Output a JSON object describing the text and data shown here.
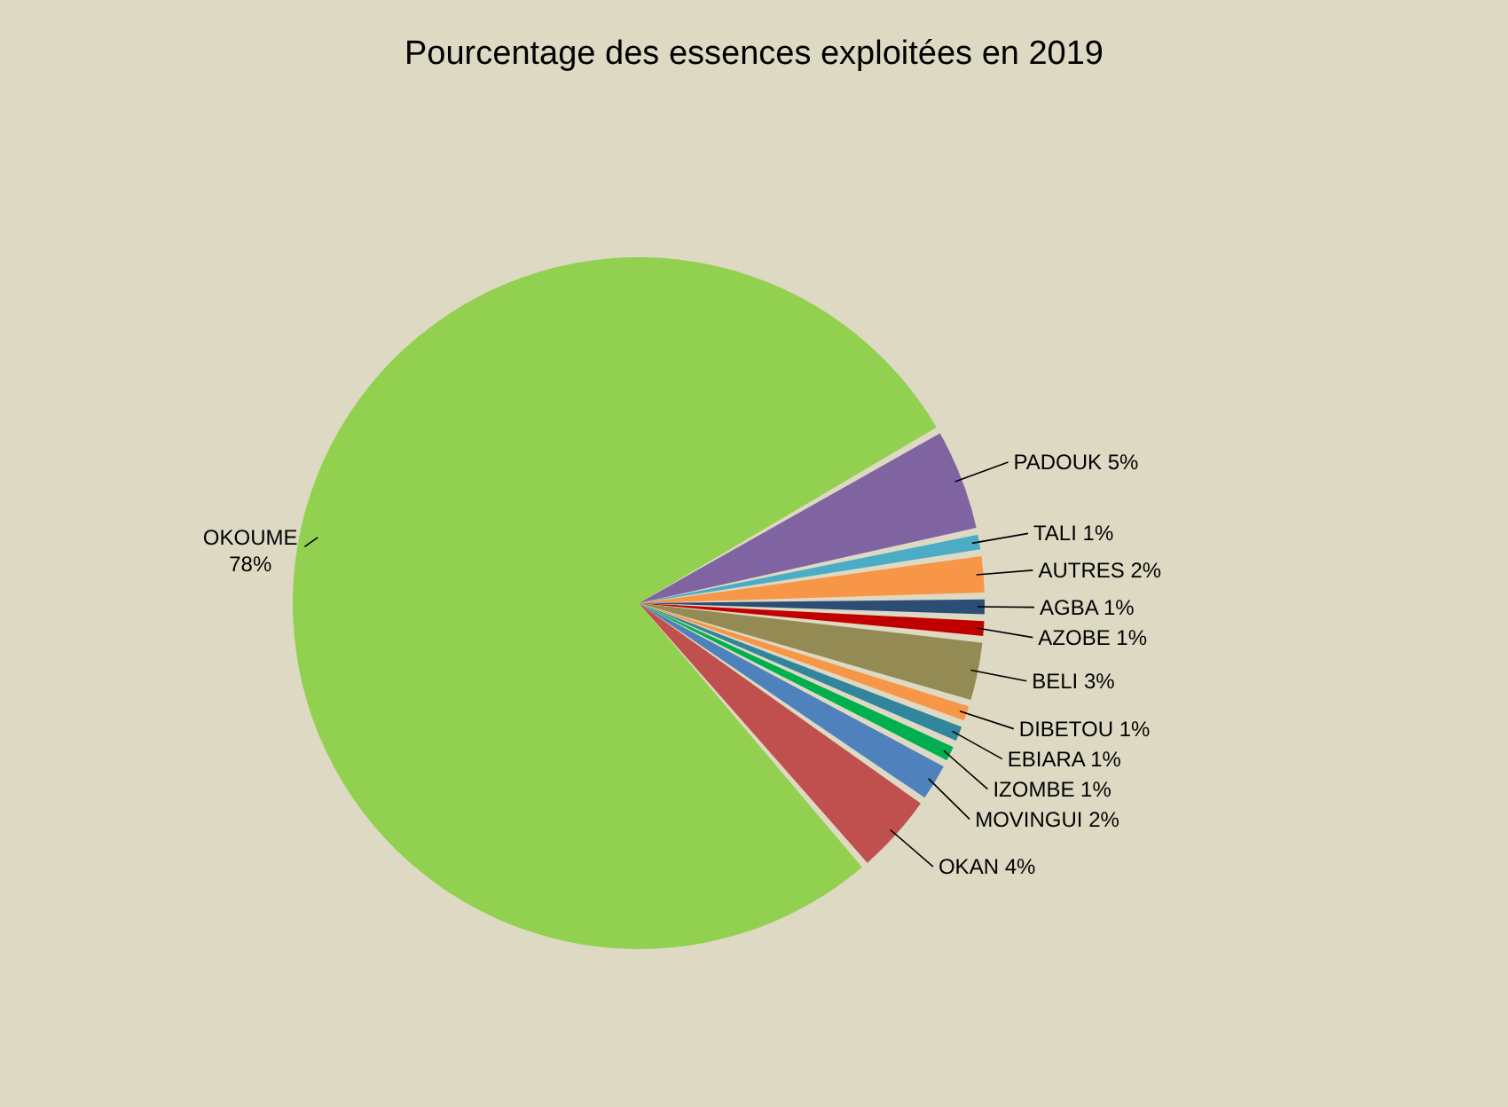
{
  "chart_data": {
    "type": "pie",
    "title": "Pourcentage des essences exploitées en 2019",
    "categories": [
      "PADOUK",
      "TALI",
      "AUTRES",
      "AGBA",
      "AZOBE",
      "BELI",
      "DIBETOU",
      "EBIARA",
      "IZOMBE",
      "MOVINGUI",
      "OKAN",
      "OKOUME"
    ],
    "values": [
      5,
      1,
      2,
      1,
      1,
      3,
      1,
      1,
      1,
      2,
      4,
      78
    ],
    "value_labels": [
      "5%",
      "1%",
      "2%",
      "1%",
      "1%",
      "3%",
      "1%",
      "1%",
      "1%",
      "2%",
      "4%",
      "78%"
    ],
    "colors": [
      "#8064a2",
      "#4bacc6",
      "#f79646",
      "#2c4d75",
      "#c00000",
      "#948a54",
      "#f79646",
      "#31859c",
      "#00b050",
      "#4f81bd",
      "#c0504d",
      "#92d050"
    ],
    "legend": false
  }
}
